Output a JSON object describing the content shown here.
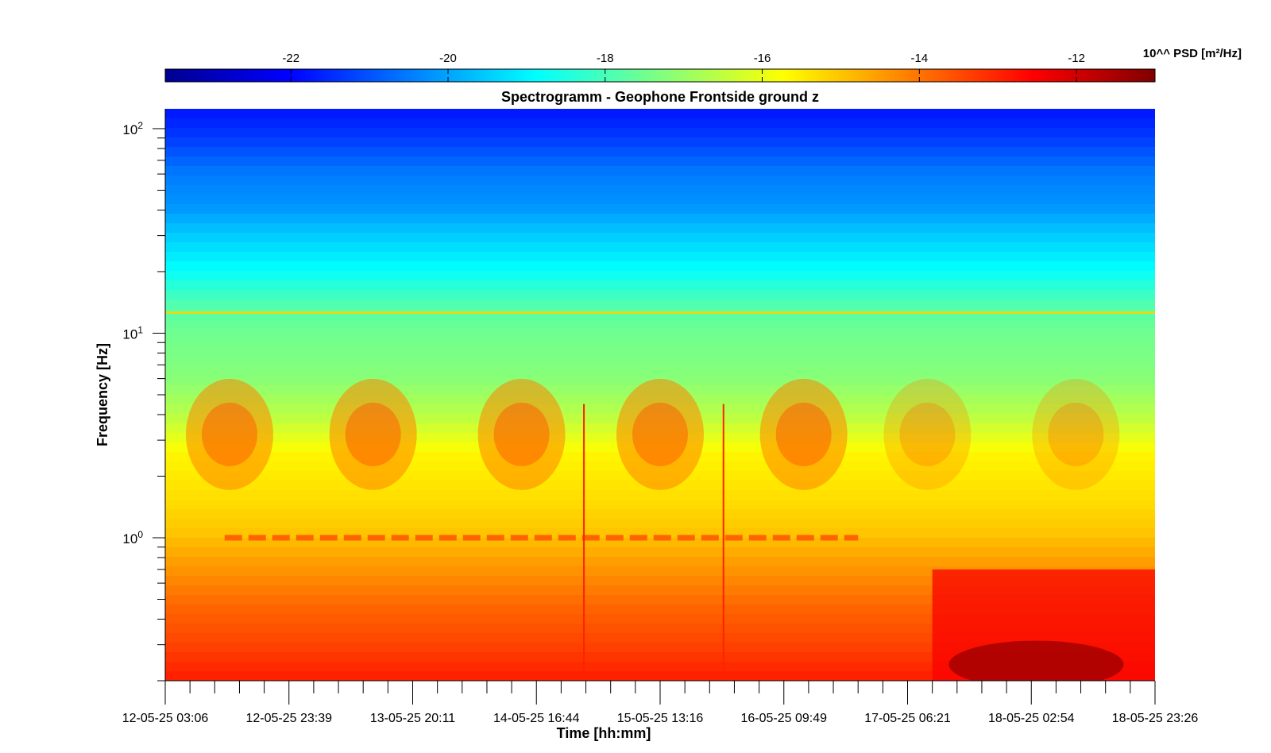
{
  "chart_data": {
    "type": "heatmap",
    "title": "Spectrogramm - Geophone Frontside ground z",
    "xlabel": "Time [hh:mm]",
    "ylabel": "Frequency [Hz]",
    "colorbar": {
      "label": "10^^ PSD [m²/Hz]",
      "ticks": [
        "-22",
        "-20",
        "-18",
        "-16",
        "-14",
        "-12"
      ],
      "tick_values": [
        -22,
        -20,
        -18,
        -16,
        -14,
        -12
      ],
      "range": [
        -23.6,
        -11
      ],
      "colormap": "jet",
      "position": "top"
    },
    "x": {
      "ticks": [
        "12-05-25 03:06",
        "12-05-25 23:39",
        "13-05-25 20:11",
        "14-05-25 16:44",
        "15-05-25 13:16",
        "16-05-25 09:49",
        "17-05-25 06:21",
        "18-05-25 02:54",
        "18-05-25 23:26"
      ],
      "range": [
        "12-05-25 03:06",
        "18-05-25 23:26"
      ]
    },
    "y": {
      "scale": "log",
      "range": [
        0.2,
        125
      ],
      "major_ticks": [
        1,
        10,
        100
      ],
      "major_tick_labels": [
        {
          "base": "10",
          "exp": "0"
        },
        {
          "base": "10",
          "exp": "1"
        },
        {
          "base": "10",
          "exp": "2"
        }
      ]
    },
    "notable_features": [
      {
        "description": "daytime activity bursts 2–5 Hz",
        "days": [
          "12-05-25",
          "13-05-25",
          "14-05-25",
          "15-05-25",
          "16-05-25",
          "17-05-25"
        ]
      },
      {
        "description": "persistent spectral line",
        "frequency_hz": 12.6
      },
      {
        "description": "intermittent line",
        "frequency_hz": 1.0
      },
      {
        "description": "high energy low-frequency band",
        "from": "18-05-25",
        "frequency_range_hz": [
          0.2,
          0.7
        ]
      }
    ],
    "grid": false
  }
}
